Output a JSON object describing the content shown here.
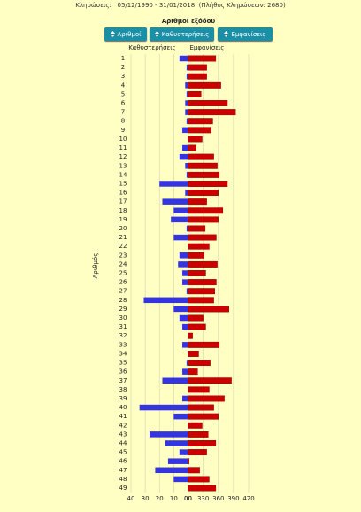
{
  "header": "Κληρώσεις:   05/12/1990 - 31/01/2018  (Πλήθος Κληρώσεων: 2680)",
  "buttons": [
    "Αριθμοί",
    "Καθυστερήσεις",
    "Εμφανίσεις"
  ],
  "chart_data": {
    "type": "diverging-bar",
    "title": "Αριθμοί εξόδου",
    "ylabel": "Αριθμός",
    "categories": [
      "1",
      "2",
      "3",
      "4",
      "5",
      "6",
      "7",
      "8",
      "9",
      "10",
      "11",
      "12",
      "13",
      "14",
      "15",
      "16",
      "17",
      "18",
      "19",
      "20",
      "21",
      "22",
      "23",
      "24",
      "25",
      "26",
      "27",
      "28",
      "29",
      "30",
      "31",
      "32",
      "33",
      "34",
      "35",
      "36",
      "37",
      "38",
      "39",
      "40",
      "41",
      "42",
      "43",
      "44",
      "45",
      "46",
      "47",
      "48",
      "49"
    ],
    "series": [
      {
        "name": "Καθυστερήσεις",
        "color": "#3434e0",
        "axis": "x",
        "values": [
          6,
          1,
          1,
          2,
          1,
          2,
          2,
          1,
          4,
          0,
          4,
          6,
          2,
          1,
          20,
          2,
          18,
          10,
          12,
          1,
          10,
          0,
          6,
          7,
          4,
          4,
          1,
          31,
          10,
          6,
          4,
          0,
          4,
          0,
          1,
          4,
          18,
          0,
          4,
          34,
          10,
          0,
          27,
          16,
          6,
          14,
          23,
          10,
          0
        ]
      },
      {
        "name": "Εμφανίσεις",
        "color": "#cc0000",
        "axis": "x2",
        "values": [
          355,
          337,
          337,
          365,
          326,
          378,
          394,
          349,
          346,
          328,
          316,
          351,
          358,
          362,
          378,
          360,
          337,
          369,
          360,
          334,
          356,
          342,
          332,
          358,
          335,
          356,
          353,
          351,
          381,
          330,
          335,
          309,
          362,
          321,
          344,
          319,
          386,
          342,
          372,
          351,
          360,
          328,
          340,
          355,
          337,
          302,
          323,
          342,
          355
        ]
      }
    ],
    "xlim": [
      40,
      0
    ],
    "xticks": [
      40,
      30,
      20,
      10,
      {
        "value": 0,
        "label": "00"
      }
    ],
    "x2lim": [
      300,
      420
    ],
    "x2ticks": [
      {
        "value": 300,
        "label": "00"
      },
      330,
      360,
      390,
      420
    ],
    "grid": true
  }
}
